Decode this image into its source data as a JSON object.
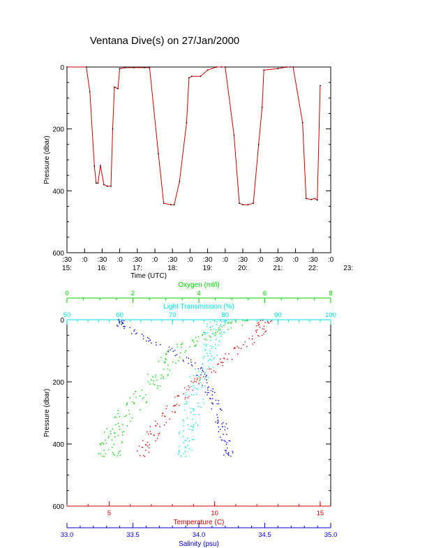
{
  "title": "Ventana Dive(s) on 27/Jan/2000",
  "colors": {
    "axis": "#000000",
    "depth_trace": "#cc0000",
    "oxygen": "#00cc00",
    "light": "#00e0e0",
    "temperature": "#cc0000",
    "salinity": "#0000cc"
  },
  "chart_data": [
    {
      "type": "line",
      "title": "Ventana Dive(s) on 27/Jan/2000",
      "xlabel": "Time (UTC)",
      "ylabel": "Pressure (dbar)",
      "xlim": [
        15.5,
        23.0
      ],
      "ylim": [
        600,
        0
      ],
      "yticks": [
        0,
        200,
        400,
        600
      ],
      "xtick_minutes": [
        ":30",
        ":0",
        ":30",
        ":0",
        ":30",
        ":0",
        ":30",
        ":0",
        ":30",
        ":0",
        ":30",
        ":0",
        ":30",
        ":0",
        ":30",
        ":0"
      ],
      "xtick_hours": [
        "15:",
        "16:",
        "17:",
        "18:",
        "19:",
        "20:",
        "21:",
        "22:",
        "23:"
      ],
      "grid": false,
      "series": [
        {
          "x": [
            15.5,
            16.05,
            16.15,
            16.28,
            16.33,
            16.38,
            16.45,
            16.55,
            16.65,
            16.75,
            16.8,
            16.85,
            16.95,
            17.0,
            17.15,
            17.4,
            17.7,
            17.85,
            18.1,
            18.25,
            18.45,
            18.55,
            18.7,
            18.9,
            18.97,
            19.05,
            19.3,
            19.5,
            19.75,
            19.9,
            20.0,
            20.25,
            20.4,
            20.5,
            20.65,
            20.8,
            20.95,
            21.05,
            21.1,
            21.5,
            21.75,
            21.85,
            21.93,
            22.2,
            22.3,
            22.45,
            22.55,
            22.62,
            22.7
          ],
          "y": [
            0,
            0,
            80,
            320,
            375,
            375,
            318,
            380,
            385,
            385,
            200,
            65,
            70,
            5,
            2,
            2,
            2,
            2,
            280,
            440,
            445,
            445,
            370,
            180,
            35,
            30,
            30,
            10,
            0,
            0,
            0,
            220,
            440,
            445,
            445,
            440,
            250,
            130,
            10,
            5,
            0,
            0,
            0,
            180,
            425,
            428,
            425,
            430,
            60
          ]
        }
      ]
    },
    {
      "type": "scatter",
      "ylabel": "Pressure (dbar)",
      "ylim": [
        600,
        0
      ],
      "yticks": [
        0,
        200,
        400,
        600
      ],
      "axes": [
        {
          "name": "Oxygen (ml/l)",
          "position": "top",
          "lim": [
            0,
            8
          ],
          "ticks": [
            0,
            2,
            4,
            6,
            8
          ]
        },
        {
          "name": "Light Transmission (%)",
          "position": "top",
          "lim": [
            50,
            100
          ],
          "ticks": [
            50,
            60,
            70,
            80,
            90,
            100
          ]
        },
        {
          "name": "Temperature (C)",
          "position": "bottom",
          "lim": [
            3,
            15.5
          ],
          "ticks": [
            5,
            10,
            15
          ]
        },
        {
          "name": "Salinity (psu)",
          "position": "bottom",
          "lim": [
            33.0,
            35.0
          ],
          "ticks": [
            "33.0",
            "33.5",
            "34.0",
            "34.5",
            "35.0"
          ]
        }
      ],
      "series": [
        {
          "name": "Oxygen (ml/l)",
          "axis": 0,
          "y": [
            0,
            20,
            50,
            80,
            120,
            160,
            200,
            250,
            300,
            350,
            380,
            420,
            440
          ],
          "x": [
            5.2,
            5.0,
            4.2,
            3.6,
            3.2,
            2.9,
            2.6,
            2.2,
            1.8,
            1.5,
            1.4,
            1.3,
            1.3
          ]
        },
        {
          "name": "Light Transmission (%)",
          "axis": 1,
          "y": [
            0,
            30,
            60,
            100,
            150,
            200,
            250,
            300,
            350,
            400,
            440
          ],
          "x": [
            79,
            78,
            78,
            77,
            76,
            75,
            74,
            74,
            73,
            73,
            73
          ]
        },
        {
          "name": "Temperature (C)",
          "axis": 2,
          "y": [
            0,
            20,
            60,
            100,
            150,
            200,
            250,
            300,
            350,
            400,
            440
          ],
          "x": [
            12.4,
            12.3,
            11.9,
            11.0,
            10.2,
            9.2,
            8.4,
            7.8,
            7.2,
            6.8,
            6.5
          ]
        },
        {
          "name": "Salinity (psu)",
          "axis": 3,
          "y": [
            0,
            20,
            60,
            100,
            150,
            200,
            250,
            300,
            350,
            400,
            440
          ],
          "x": [
            33.4,
            33.42,
            33.6,
            33.8,
            33.98,
            34.05,
            34.1,
            34.15,
            34.18,
            34.22,
            34.23
          ]
        }
      ]
    }
  ]
}
